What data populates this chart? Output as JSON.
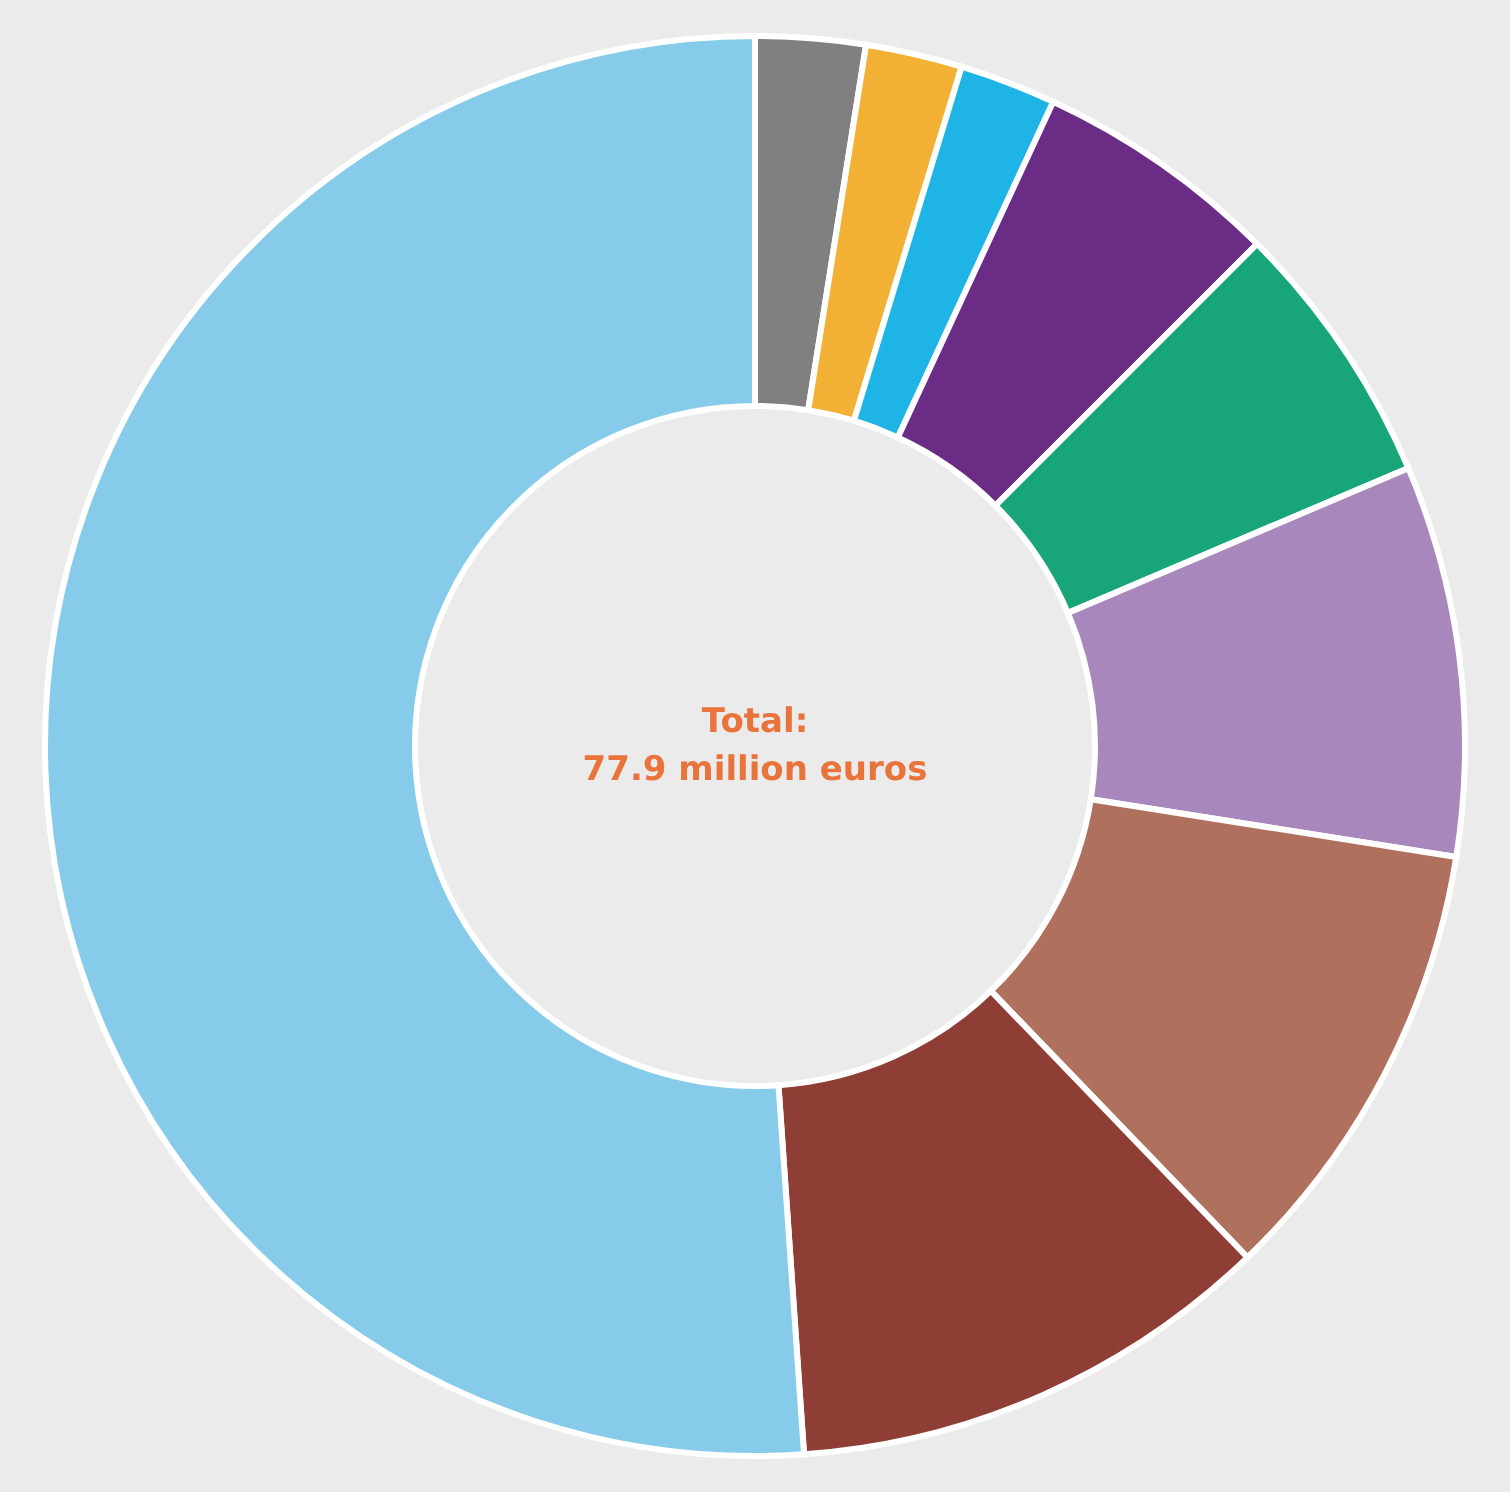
{
  "chart_data": {
    "type": "donut",
    "categories": [
      null,
      null,
      null,
      null,
      null,
      null,
      null,
      null,
      null
    ],
    "values": [
      2.5,
      2.2,
      2.2,
      5.6,
      6.1,
      8.9,
      10.3,
      11.1,
      51.1
    ],
    "colors": [
      "#808080",
      "#f2b134",
      "#1eb4e6",
      "#6a2c85",
      "#19a57a",
      "#a887bd",
      "#b0705e",
      "#8e3e35",
      "#86cbe9"
    ],
    "annotations": [
      "Total:",
      "77.9 million euros"
    ],
    "legend": false
  }
}
